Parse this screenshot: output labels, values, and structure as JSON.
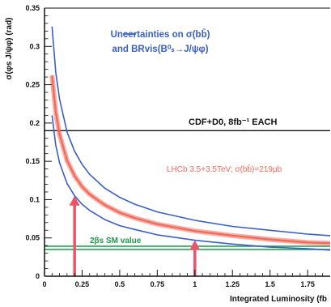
{
  "chart_data": {
    "type": "line",
    "xlabel": "Integrated Luminosity (fb",
    "ylabel": "σ(φs J/ψφ) (rad)",
    "xlim": [
      0,
      1.9
    ],
    "ylim": [
      0,
      0.35
    ],
    "x_ticks": [
      "0",
      "0.25",
      "0.5",
      "0.75",
      "1",
      "1.25",
      "1.5",
      "1.75"
    ],
    "y_ticks": [
      "0",
      "0.05",
      "0.1",
      "0.15",
      "0.2",
      "0.25",
      "0.3",
      "0.35"
    ],
    "grid": false,
    "series": [
      {
        "name": "LHCb 3.5+3.5TeV; σ(bb̄)=219μb",
        "color": "#f06a5a",
        "x": [
          0.05,
          0.075,
          0.1,
          0.15,
          0.2,
          0.25,
          0.3,
          0.4,
          0.5,
          0.6,
          0.75,
          1.0,
          1.25,
          1.5,
          1.75,
          1.9
        ],
        "y": [
          0.262,
          0.214,
          0.185,
          0.151,
          0.131,
          0.117,
          0.107,
          0.093,
          0.083,
          0.076,
          0.068,
          0.059,
          0.053,
          0.048,
          0.044,
          0.043
        ]
      },
      {
        "name": "upper uncertainty",
        "color": "#3a5fc8",
        "x": [
          0.05,
          0.075,
          0.1,
          0.15,
          0.2,
          0.25,
          0.3,
          0.4,
          0.5,
          0.6,
          0.75,
          1.0,
          1.25,
          1.5,
          1.75,
          1.9
        ],
        "y": [
          0.326,
          0.266,
          0.231,
          0.188,
          0.163,
          0.146,
          0.133,
          0.115,
          0.103,
          0.094,
          0.084,
          0.073,
          0.065,
          0.06,
          0.055,
          0.053
        ]
      },
      {
        "name": "lower uncertainty",
        "color": "#3a5fc8",
        "x": [
          0.05,
          0.075,
          0.1,
          0.15,
          0.2,
          0.25,
          0.3,
          0.4,
          0.5,
          0.6,
          0.75,
          1.0,
          1.25,
          1.5,
          1.75,
          1.9
        ],
        "y": [
          0.21,
          0.171,
          0.148,
          0.121,
          0.105,
          0.094,
          0.086,
          0.074,
          0.066,
          0.061,
          0.054,
          0.047,
          0.042,
          0.038,
          0.036,
          0.034
        ]
      }
    ],
    "reference_lines": [
      {
        "label": "CDF+D0, 8fb⁻¹ EACH",
        "y": 0.19,
        "color": "#111111"
      },
      {
        "label": "2βs SM value",
        "y": 0.037,
        "color": "#1a9a4a"
      }
    ],
    "arrows": [
      {
        "x": 0.2,
        "y_from": 0.0,
        "y_to": 0.105,
        "color": "#e8556a"
      },
      {
        "x": 1.0,
        "y_from": 0.0,
        "y_to": 0.047,
        "color": "#e8556a"
      }
    ],
    "annotations": {
      "legend_line1": "Uncertainties on σ(bb̄)",
      "legend_line2": "and BRvis(B⁰ₛ→J/ψφ)",
      "cdf_label": "CDF+D0, 8fb⁻¹ EACH",
      "lhcb_label": "LHCb 3.5+3.5TeV;  σ(bb̄)=219μb",
      "sm_label": "2βs SM value"
    }
  }
}
